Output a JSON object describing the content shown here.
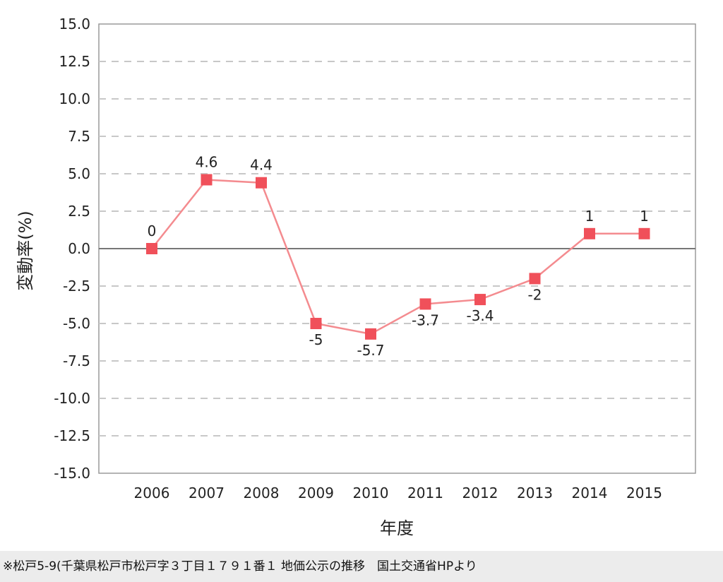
{
  "chart_data": {
    "type": "line",
    "title": "",
    "xlabel": "年度",
    "ylabel": "変動率(%)",
    "categories": [
      "2006",
      "2007",
      "2008",
      "2009",
      "2010",
      "2011",
      "2012",
      "2013",
      "2014",
      "2015"
    ],
    "values": [
      0,
      4.6,
      4.4,
      -5,
      -5.7,
      -3.7,
      -3.4,
      -2,
      1,
      1
    ],
    "data_labels": [
      "0",
      "4.6",
      "4.4",
      "-5",
      "-5.7",
      "-3.7",
      "-3.4",
      "-2",
      "1",
      "1"
    ],
    "ylim": [
      -15,
      15
    ],
    "yticks": [
      15,
      12.5,
      10,
      7.5,
      5,
      2.5,
      0,
      -2.5,
      -5,
      -7.5,
      -10,
      -12.5,
      -15
    ],
    "ytick_labels": [
      "15.0",
      "12.5",
      "10.0",
      "7.5",
      "5.0",
      "2.5",
      "0.0",
      "-2.5",
      "-5.0",
      "-7.5",
      "-10.0",
      "-12.5",
      "-15.0"
    ],
    "grid": "horizontal dashed",
    "marker": "square",
    "series_color": "#f0505a",
    "line_color": "#f48b8f"
  },
  "caption": "※松戸5-9(千葉県松戸市松戸字３丁目１７９１番１ 地価公示の推移　国土交通省HPより"
}
